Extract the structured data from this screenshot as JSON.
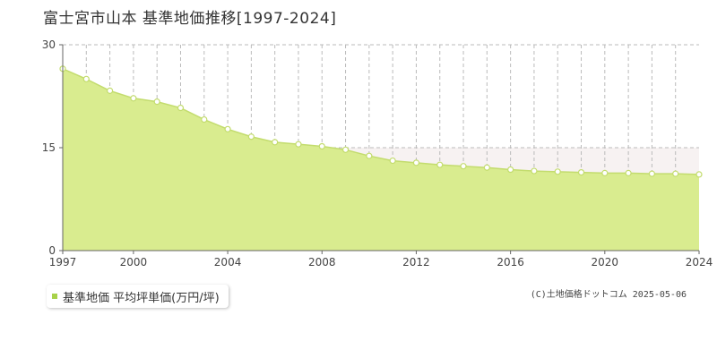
{
  "header": {
    "title": "富士宮市山本  基準地価推移[1997-2024]"
  },
  "legend": {
    "label": "基準地価 平均坪単価(万円/坪)"
  },
  "footer": {
    "copyright": "(C)土地価格ドットコム 2025-05-06"
  },
  "colors": {
    "line": "#c3dc6e",
    "fill": "#d9ec8f",
    "marker": "#ffffff",
    "grid": "#bbbbbb"
  },
  "chart_data": {
    "type": "area",
    "title": "富士宮市山本  基準地価推移[1997-2024]",
    "xlabel": "",
    "ylabel": "",
    "ylim": [
      0,
      30
    ],
    "xlim": [
      1997,
      2024
    ],
    "y_ticks": [
      "0",
      "15",
      "30"
    ],
    "x_ticks": [
      "1997",
      "2000",
      "2004",
      "2008",
      "2012",
      "2016",
      "2020",
      "2024"
    ],
    "grid": true,
    "legend_position": "bottom-left",
    "series": [
      {
        "name": "基準地価 平均坪単価(万円/坪)",
        "x": [
          1997,
          1998,
          1999,
          2000,
          2001,
          2002,
          2003,
          2004,
          2005,
          2006,
          2007,
          2008,
          2009,
          2010,
          2011,
          2012,
          2013,
          2014,
          2015,
          2016,
          2017,
          2018,
          2019,
          2020,
          2021,
          2022,
          2023,
          2024
        ],
        "values": [
          26.5,
          25.0,
          23.3,
          22.2,
          21.7,
          20.8,
          19.1,
          17.7,
          16.6,
          15.8,
          15.5,
          15.2,
          14.7,
          13.8,
          13.1,
          12.8,
          12.5,
          12.3,
          12.1,
          11.8,
          11.6,
          11.5,
          11.4,
          11.3,
          11.3,
          11.2,
          11.2,
          11.1
        ]
      }
    ]
  }
}
